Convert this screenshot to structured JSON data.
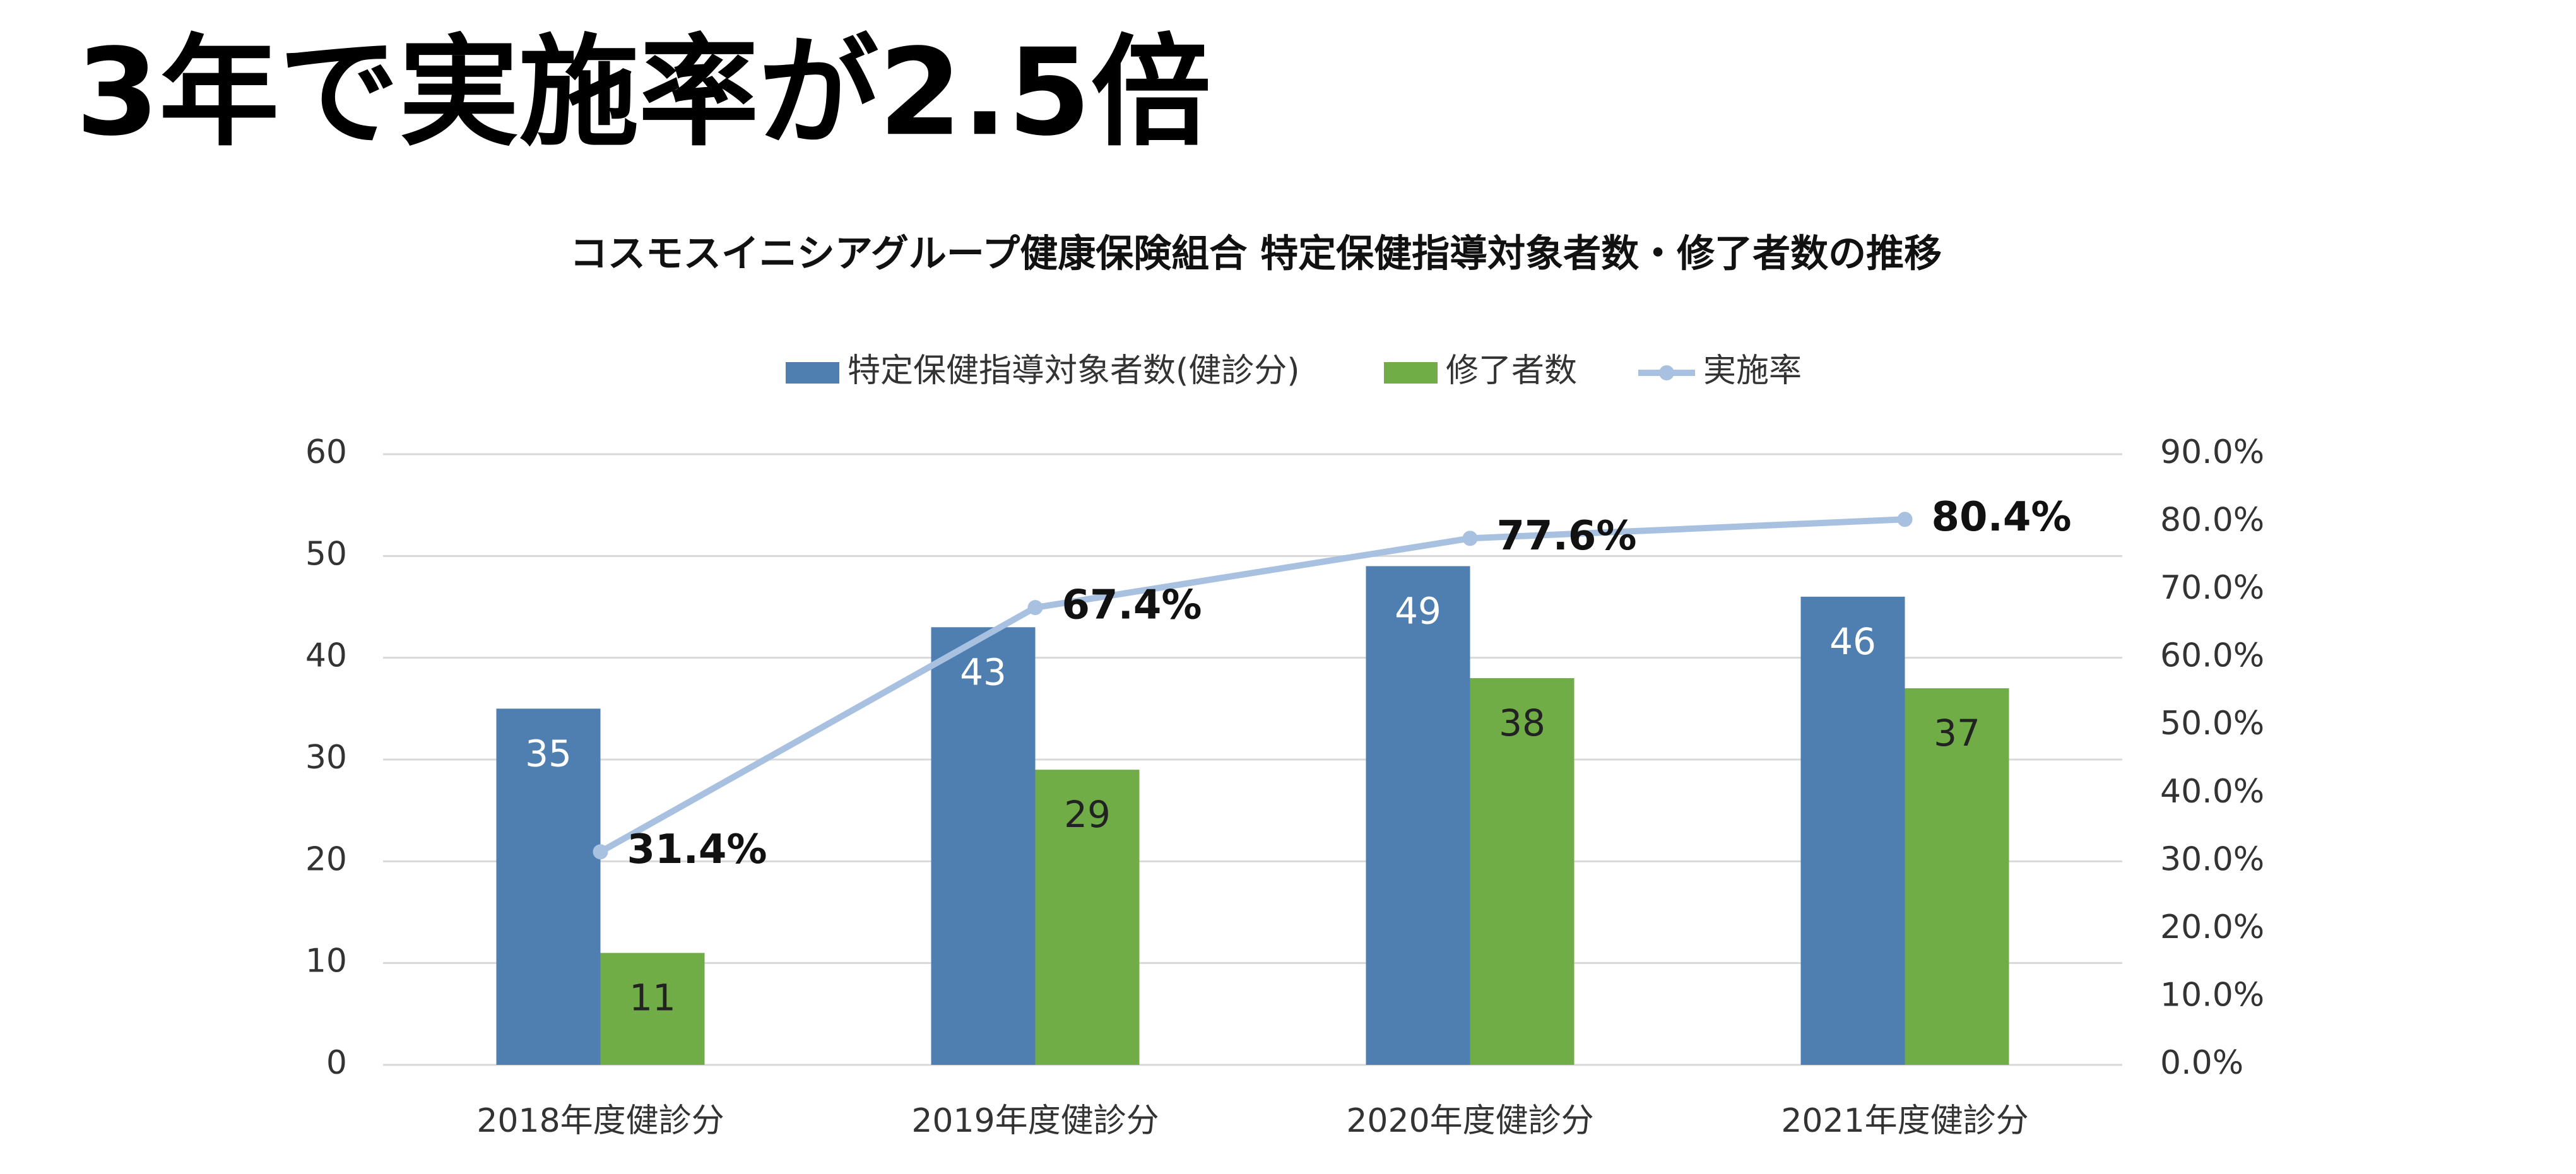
{
  "header": {
    "title": "3年で実施率が2.5倍"
  },
  "chart_data": {
    "type": "bar",
    "title": "コスモスイニシアグループ健康保険組合 特定保健指導対象者数・修了者数の推移",
    "categories": [
      "2018年度健診分",
      "2019年度健診分",
      "2020年度健診分",
      "2021年度健診分"
    ],
    "series": [
      {
        "name": "特定保健指導対象者数(健診分)",
        "type": "bar",
        "color": "#4e7fb0",
        "label_color": "#ffffff",
        "values": [
          35,
          43,
          49,
          46
        ]
      },
      {
        "name": "修了者数",
        "type": "bar",
        "color": "#70ad47",
        "label_color": "#222222",
        "values": [
          11,
          29,
          38,
          37
        ]
      },
      {
        "name": "実施率",
        "type": "line",
        "axis": "y2",
        "color": "#a9c1e0",
        "values": [
          31.4,
          67.4,
          77.6,
          80.4
        ],
        "value_labels": [
          "31.4%",
          "67.4%",
          "77.6%",
          "80.4%"
        ]
      }
    ],
    "ylim": [
      0,
      60
    ],
    "yticks": [
      0,
      10,
      20,
      30,
      40,
      50,
      60
    ],
    "y2lim": [
      0,
      90
    ],
    "y2ticks": [
      {
        "value": 0,
        "label": "0.0%"
      },
      {
        "value": 10,
        "label": "10.0%"
      },
      {
        "value": 20,
        "label": "20.0%"
      },
      {
        "value": 30,
        "label": "30.0%"
      },
      {
        "value": 40,
        "label": "40.0%"
      },
      {
        "value": 50,
        "label": "50.0%"
      },
      {
        "value": 60,
        "label": "60.0%"
      },
      {
        "value": 70,
        "label": "70.0%"
      },
      {
        "value": 80,
        "label": "80.0%"
      },
      {
        "value": 90,
        "label": "90.0%"
      }
    ],
    "grid": true,
    "legend": "top"
  }
}
